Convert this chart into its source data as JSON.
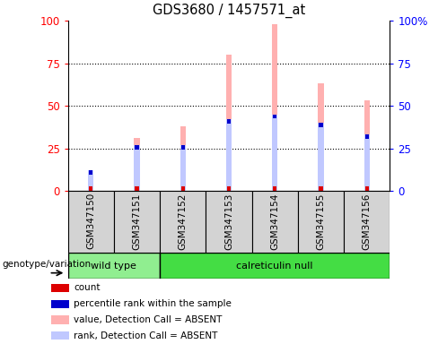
{
  "title": "GDS3680 / 1457571_at",
  "samples": [
    "GSM347150",
    "GSM347151",
    "GSM347152",
    "GSM347153",
    "GSM347154",
    "GSM347155",
    "GSM347156"
  ],
  "absent_value_bars": [
    12,
    31,
    38,
    80,
    98,
    63,
    53
  ],
  "absent_rank_bars": [
    12,
    27,
    27,
    42,
    45,
    40,
    33
  ],
  "count_markers": [
    2,
    2,
    2,
    2,
    2,
    2,
    2
  ],
  "percentile_markers": [
    12,
    27,
    27,
    42,
    45,
    40,
    33
  ],
  "ylim": [
    0,
    100
  ],
  "yticks": [
    0,
    25,
    50,
    75,
    100
  ],
  "right_ytick_labels": [
    "0",
    "25",
    "50",
    "75",
    "100%"
  ],
  "bar_width": 0.12,
  "absent_value_color": "#FFB0B0",
  "absent_rank_color": "#C0C8FF",
  "count_color": "#DD0000",
  "percentile_color": "#0000CC",
  "wt_color": "#90EE90",
  "cn_color": "#44DD44",
  "sample_bg_color": "#D3D3D3",
  "legend_items": [
    [
      "#DD0000",
      "count"
    ],
    [
      "#0000CC",
      "percentile rank within the sample"
    ],
    [
      "#FFB0B0",
      "value, Detection Call = ABSENT"
    ],
    [
      "#C0C8FF",
      "rank, Detection Call = ABSENT"
    ]
  ]
}
